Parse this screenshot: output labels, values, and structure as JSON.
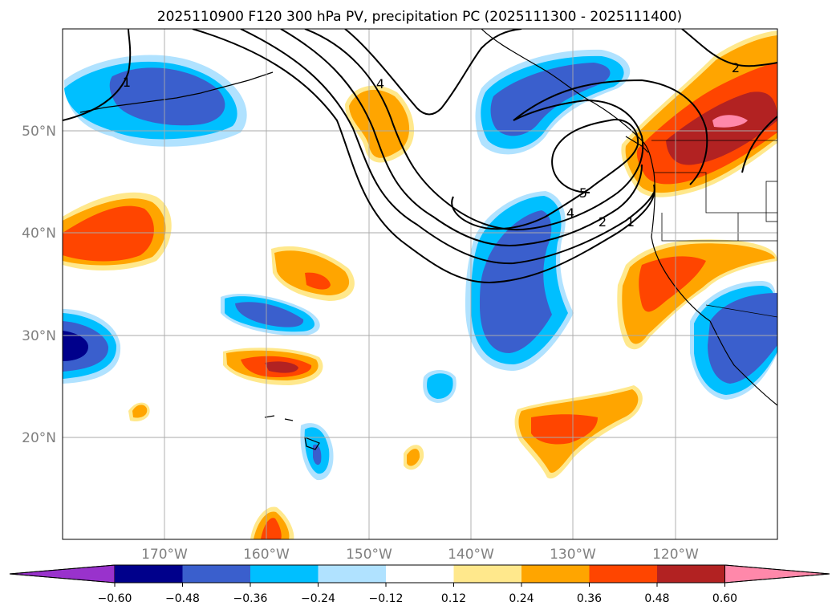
{
  "title": "2025110900 F120 300 hPa PV, precipitation PC (2025111300 - 2025111400)",
  "map": {
    "lat_labels": [
      "50°N",
      "40°N",
      "30°N",
      "20°N"
    ],
    "lon_labels": [
      "170°W",
      "160°W",
      "150°W",
      "140°W",
      "130°W",
      "120°W"
    ],
    "extent": {
      "lon_min": -180,
      "lon_max": -110,
      "lat_min": 10,
      "lat_max": 60
    }
  },
  "colorbar": {
    "ticks": [
      "−0.60",
      "−0.48",
      "−0.36",
      "−0.24",
      "−0.12",
      "0.12",
      "0.24",
      "0.36",
      "0.48",
      "0.60"
    ],
    "colors": [
      "#9932cc",
      "#00008b",
      "#3a5fcd",
      "#00bfff",
      "#b0e2ff",
      "#ffffff",
      "#ffe88c",
      "#ffa500",
      "#ff4500",
      "#b22222",
      "#ff88aa"
    ]
  },
  "pv_contours": {
    "labels": [
      "1",
      "4",
      "2",
      "5",
      "4",
      "2",
      "1"
    ]
  }
}
